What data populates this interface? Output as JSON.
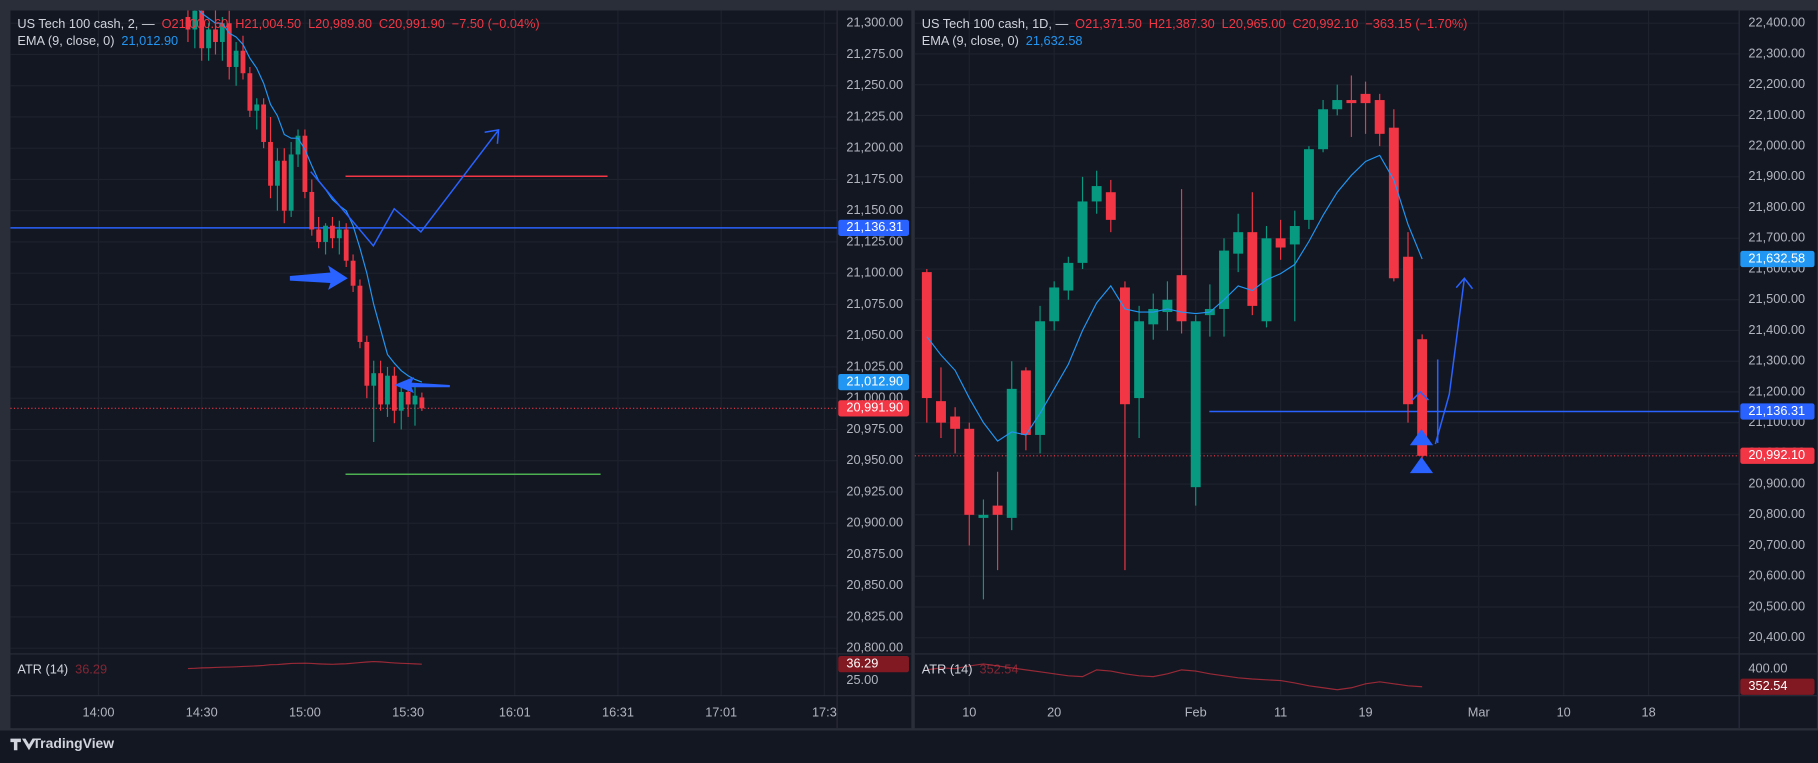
{
  "chart_data": [
    {
      "type": "candlestick",
      "symbol": "US Tech 100 cash, 2, —",
      "legend": {
        "o": "O21,000.60",
        "h": "H21,004.50",
        "l": "L20,989.80",
        "c": "C20,991.90",
        "change": "−7.50 (−0.04%)"
      },
      "indicator": "EMA (9, close, 0)",
      "ema_label": "21,012.90",
      "last_label": "20,991.90",
      "colors": {
        "up": "#089981",
        "down": "#f23645",
        "ema": "#2196f3",
        "hline": "#2962ff"
      },
      "x": [
        26,
        28,
        30,
        32,
        34,
        36,
        38,
        40,
        42,
        44,
        46,
        48,
        50,
        52,
        54,
        56,
        58,
        60,
        62,
        64,
        66,
        68,
        70,
        72,
        74,
        76,
        78,
        80,
        82,
        84,
        86,
        88,
        90,
        92,
        94
      ],
      "open": [
        21305,
        21295,
        21310,
        21280,
        21295,
        21285,
        21300,
        21265,
        21278,
        21260,
        21230,
        21235,
        21205,
        21170,
        21190,
        21150,
        21195,
        21210,
        21165,
        21135,
        21125,
        21138,
        21128,
        21135,
        21110,
        21090,
        21045,
        21010,
        21020,
        20995,
        21018,
        20990,
        21005,
        20995,
        21000.6
      ],
      "high": [
        21330,
        21315,
        21320,
        21300,
        21315,
        21305,
        21310,
        21285,
        21290,
        21265,
        21240,
        21240,
        21225,
        21200,
        21200,
        21205,
        21215,
        21215,
        21175,
        21145,
        21140,
        21145,
        21142,
        21140,
        21115,
        21095,
        21050,
        21030,
        21030,
        21025,
        21025,
        21010,
        21015,
        21010,
        21004.5
      ],
      "low": [
        21285,
        21280,
        21270,
        21270,
        21275,
        21270,
        21255,
        21250,
        21255,
        21225,
        21215,
        21200,
        21160,
        21150,
        21140,
        21145,
        21185,
        21160,
        21130,
        21120,
        21115,
        21120,
        21115,
        21105,
        21085,
        21040,
        21000,
        20965,
        20990,
        20985,
        20980,
        20975,
        20985,
        20978,
        20989.8
      ],
      "close": [
        21295,
        21310,
        21280,
        21295,
        21285,
        21300,
        21265,
        21278,
        21260,
        21230,
        21235,
        21205,
        21170,
        21190,
        21150,
        21195,
        21210,
        21165,
        21135,
        21125,
        21138,
        21128,
        21135,
        21110,
        21090,
        21045,
        21010,
        21020,
        20995,
        21018,
        20990,
        21005,
        20995,
        21002,
        20991.9
      ],
      "ema": [
        21318,
        21314,
        21308,
        21304,
        21300,
        21300,
        21292,
        21289,
        21283,
        21272,
        21264,
        21252,
        21235,
        21226,
        21211,
        21208,
        21208,
        21199,
        21186,
        21174,
        21167,
        21159,
        21154,
        21150,
        21138,
        21120,
        21100,
        21075,
        21055,
        21035,
        21028,
        21022,
        21018,
        21015,
        21012.9
      ],
      "xlim": [
        -25.6,
        214.7
      ],
      "xticks": [
        {
          "value": 0,
          "label": "14:00"
        },
        {
          "value": 30,
          "label": "14:30"
        },
        {
          "value": 60,
          "label": "15:00"
        },
        {
          "value": 90,
          "label": "15:30"
        },
        {
          "value": 121,
          "label": "16:01"
        },
        {
          "value": 151,
          "label": "16:31"
        },
        {
          "value": 181,
          "label": "17:01"
        },
        {
          "value": 211,
          "label": "17:3"
        }
      ],
      "ylim": [
        20796.3,
        21310.2
      ],
      "yticks": [
        {
          "value": 20800,
          "label": "20,800.00"
        },
        {
          "value": 20825,
          "label": "20,825.00"
        },
        {
          "value": 20850,
          "label": "20,850.00"
        },
        {
          "value": 20875,
          "label": "20,875.00"
        },
        {
          "value": 20900,
          "label": "20,900.00"
        },
        {
          "value": 20925,
          "label": "20,925.00"
        },
        {
          "value": 20950,
          "label": "20,950.00"
        },
        {
          "value": 20975,
          "label": "20,975.00"
        },
        {
          "value": 21000,
          "label": "21,000.00"
        },
        {
          "value": 21025,
          "label": "21,025.00"
        },
        {
          "value": 21050,
          "label": "21,050.00"
        },
        {
          "value": 21075,
          "label": "21,075.00"
        },
        {
          "value": 21100,
          "label": "21,100.00"
        },
        {
          "value": 21125,
          "label": "21,125.00"
        },
        {
          "value": 21150,
          "label": "21,150.00"
        },
        {
          "value": 21175,
          "label": "21,175.00"
        },
        {
          "value": 21200,
          "label": "21,200.00"
        },
        {
          "value": 21225,
          "label": "21,225.00"
        },
        {
          "value": 21250,
          "label": "21,250.00"
        },
        {
          "value": 21275,
          "label": "21,275.00"
        },
        {
          "value": 21300,
          "label": "21,300.00"
        }
      ],
      "hline": {
        "value": 21136.31,
        "label": "21,136.31"
      },
      "grid": true,
      "atr": {
        "name": "ATR (14)",
        "value_label": "36.29",
        "color": "#f23645",
        "values": [
          33,
          33.2,
          33.5,
          33.6,
          33.8,
          34,
          34.1,
          34.3,
          34.6,
          34.8,
          35,
          35.3,
          35.9,
          36,
          36.4,
          36.8,
          36.9,
          37,
          36.8,
          36.5,
          36.3,
          36.2,
          36.4,
          36.6,
          37,
          37.5,
          37.9,
          38.2,
          38,
          37.6,
          37.2,
          36.9,
          36.7,
          36.5,
          36.29
        ],
        "ylim": [
          12.7,
          43.9
        ],
        "yticks": [
          {
            "value": 25,
            "label": "25.00"
          }
        ]
      }
    },
    {
      "type": "candlestick",
      "symbol": "US Tech 100 cash, 1D, —",
      "legend": {
        "o": "O21,371.50",
        "h": "H21,387.30",
        "l": "L20,965.00",
        "c": "C20,992.10",
        "change": "−363.15 (−1.70%)"
      },
      "indicator": "EMA (9, close, 0)",
      "ema_label": "21,632.58",
      "last_label": "20,992.10",
      "colors": {
        "up": "#089981",
        "down": "#f23645",
        "ema": "#2196f3",
        "hline": "#2962ff"
      },
      "x": [
        -3,
        -2,
        -1,
        0,
        1,
        2,
        3,
        4,
        5,
        6,
        7,
        8,
        9,
        10,
        11,
        12,
        13,
        14,
        15,
        16,
        17,
        18,
        19,
        20,
        21,
        22,
        23,
        24,
        25,
        26,
        27,
        28,
        29,
        30,
        31,
        32
      ],
      "open": [
        21590,
        21170,
        21120,
        21080,
        20790,
        20830,
        20790,
        21270,
        21060,
        21430,
        21530,
        21620,
        21820,
        21850,
        21540,
        21180,
        21420,
        21460,
        21580,
        20890,
        21450,
        21470,
        21650,
        21720,
        21430,
        21700,
        21680,
        21760,
        21990,
        22120,
        22150,
        22170,
        22150,
        22060,
        21640,
        21371.5
      ],
      "high": [
        21600,
        21280,
        21150,
        21100,
        20850,
        20940,
        21300,
        21280,
        21480,
        21560,
        21640,
        21900,
        21920,
        21890,
        21560,
        21480,
        21520,
        21560,
        21860,
        21450,
        21550,
        21700,
        21780,
        21850,
        21740,
        21760,
        21790,
        22000,
        22150,
        22200,
        22230,
        22210,
        22170,
        22120,
        21720,
        21387.3
      ],
      "low": [
        21100,
        21050,
        21000,
        20700,
        20525,
        20620,
        20750,
        21010,
        21000,
        21400,
        21500,
        21600,
        21780,
        21720,
        20620,
        21050,
        21370,
        21400,
        21390,
        20830,
        21380,
        21380,
        21590,
        21450,
        21410,
        21630,
        21430,
        21730,
        21980,
        22100,
        22030,
        22040,
        22000,
        21560,
        21100,
        20965
      ],
      "close": [
        21180,
        21100,
        21080,
        20800,
        20800,
        20800,
        21210,
        21060,
        21430,
        21540,
        21620,
        21820,
        21870,
        21760,
        21160,
        21430,
        21470,
        21500,
        21430,
        21430,
        21470,
        21660,
        21720,
        21480,
        21700,
        21670,
        21740,
        21990,
        22120,
        22150,
        22140,
        22140,
        22040,
        21570,
        21160,
        20992.1
      ],
      "ema": [
        21380,
        21320,
        21270,
        21180,
        21100,
        21040,
        21070,
        21060,
        21130,
        21210,
        21290,
        21400,
        21490,
        21545,
        21470,
        21460,
        21460,
        21470,
        21460,
        21455,
        21460,
        21500,
        21545,
        21530,
        21565,
        21585,
        21615,
        21690,
        21775,
        21850,
        21905,
        21950,
        21970,
        21890,
        21745,
        21632.58
      ],
      "xlim": [
        -3.85,
        54.4
      ],
      "xticks": [
        {
          "value": 0,
          "label": "10"
        },
        {
          "value": 6,
          "label": "20"
        },
        {
          "value": 16,
          "label": "Feb"
        },
        {
          "value": 22,
          "label": "11"
        },
        {
          "value": 28,
          "label": "19"
        },
        {
          "value": 36,
          "label": "Mar"
        },
        {
          "value": 42,
          "label": "10"
        },
        {
          "value": 48,
          "label": "18"
        }
      ],
      "ylim": [
        20350.9,
        22441.5
      ],
      "yticks": [
        {
          "value": 20400,
          "label": "20,400.00"
        },
        {
          "value": 20500,
          "label": "20,500.00"
        },
        {
          "value": 20600,
          "label": "20,600.00"
        },
        {
          "value": 20700,
          "label": "20,700.00"
        },
        {
          "value": 20800,
          "label": "20,800.00"
        },
        {
          "value": 20900,
          "label": "20,900.00"
        },
        {
          "value": 21000,
          "label": "21,000.00"
        },
        {
          "value": 21100,
          "label": "21,100.00"
        },
        {
          "value": 21200,
          "label": "21,200.00"
        },
        {
          "value": 21300,
          "label": "21,300.00"
        },
        {
          "value": 21400,
          "label": "21,400.00"
        },
        {
          "value": 21500,
          "label": "21,500.00"
        },
        {
          "value": 21600,
          "label": "21,600.00"
        },
        {
          "value": 21700,
          "label": "21,700.00"
        },
        {
          "value": 21800,
          "label": "21,800.00"
        },
        {
          "value": 21900,
          "label": "21,900.00"
        },
        {
          "value": 22000,
          "label": "22,000.00"
        },
        {
          "value": 22100,
          "label": "22,100.00"
        },
        {
          "value": 22200,
          "label": "22,200.00"
        },
        {
          "value": 22300,
          "label": "22,300.00"
        },
        {
          "value": 22400,
          "label": "22,400.00"
        }
      ],
      "hline": {
        "value": 21136.31,
        "label": "21,136.31"
      },
      "grid": true,
      "atr": {
        "name": "ATR (14)",
        "value_label": "352.54",
        "color": "#f23645",
        "values": [
          395,
          400,
          398,
          405,
          410,
          405,
          400,
          395,
          390,
          385,
          380,
          378,
          395,
          392,
          385,
          380,
          378,
          385,
          395,
          392,
          385,
          380,
          375,
          372,
          370,
          368,
          362,
          355,
          350,
          345,
          350,
          360,
          365,
          360,
          355,
          352.54
        ],
        "ylim": [
          330,
          435
        ],
        "yticks": [
          {
            "value": 400,
            "label": "400.00"
          }
        ]
      }
    }
  ],
  "footer": "TradingView"
}
